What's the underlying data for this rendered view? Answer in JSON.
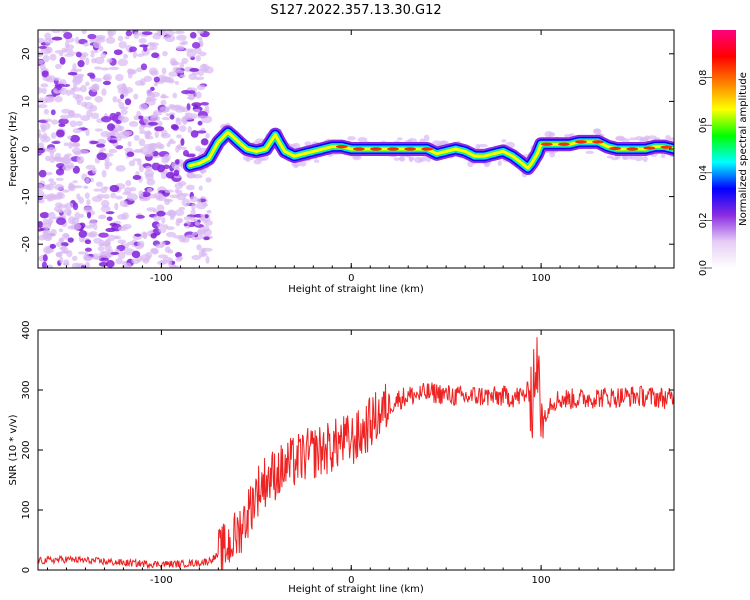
{
  "title": "S127.2022.357.13.30.G12",
  "chart_data": [
    {
      "type": "heatmap",
      "xlabel": "Height of straight line (km)",
      "ylabel": "Frequency (Hz)",
      "xlim": [
        -165,
        170
      ],
      "ylim": [
        -25,
        25
      ],
      "xticks": [
        -100,
        0,
        100
      ],
      "yticks": [
        -20,
        -10,
        0,
        10,
        20
      ],
      "colorbar": {
        "label": "Normalized spectral amplitude",
        "range": [
          0.0,
          1.0
        ],
        "ticks": [
          0.0,
          0.2,
          0.4,
          0.6,
          0.8
        ],
        "colors": [
          "#ffffff",
          "#e6ccf5",
          "#8a2be2",
          "#0000ff",
          "#00ffff",
          "#00ff00",
          "#ffff00",
          "#ff8000",
          "#ff0000",
          "#ff0080"
        ]
      },
      "ridge": {
        "x": [
          -85,
          -80,
          -75,
          -70,
          -65,
          -62,
          -58,
          -55,
          -50,
          -45,
          -40,
          -38,
          -35,
          -30,
          -25,
          -20,
          -15,
          -10,
          -5,
          0,
          10,
          20,
          30,
          35,
          40,
          45,
          50,
          55,
          60,
          65,
          70,
          75,
          80,
          85,
          90,
          93,
          95,
          98,
          100,
          105,
          110,
          115,
          120,
          125,
          130,
          135,
          140,
          145,
          150,
          155,
          160,
          165,
          170
        ],
        "y": [
          -3.5,
          -3.0,
          -2.0,
          1.5,
          3.5,
          2.5,
          1.0,
          0.0,
          -0.5,
          0.0,
          3.0,
          1.5,
          -0.5,
          -1.5,
          -1.0,
          -0.5,
          0.0,
          0.5,
          0.5,
          0.0,
          0.0,
          0.0,
          0.0,
          0.0,
          0.0,
          -1.0,
          -0.5,
          0.0,
          -0.5,
          -1.5,
          -1.5,
          -1.0,
          -0.5,
          -1.5,
          -3.0,
          -4.0,
          -3.0,
          -1.0,
          1.0,
          1.0,
          1.0,
          1.0,
          1.5,
          1.5,
          1.5,
          0.5,
          0.0,
          0.0,
          0.0,
          0.0,
          0.5,
          0.5,
          0.0
        ]
      },
      "noise_region_x": [
        -165,
        -80
      ]
    },
    {
      "type": "line",
      "xlabel": "Height of straight line (km)",
      "ylabel": "SNR (10 * v/v)",
      "xlim": [
        -165,
        170
      ],
      "ylim": [
        0,
        400
      ],
      "xticks": [
        -100,
        0,
        100
      ],
      "yticks": [
        0,
        100,
        200,
        300,
        400
      ],
      "series": [
        {
          "color": "#ee2222",
          "x": [
            -165,
            -150,
            -135,
            -120,
            -105,
            -90,
            -80,
            -75,
            -70,
            -65,
            -60,
            -55,
            -50,
            -45,
            -40,
            -35,
            -30,
            -25,
            -20,
            -15,
            -10,
            -5,
            0,
            5,
            10,
            15,
            20,
            25,
            30,
            35,
            40,
            45,
            50,
            55,
            60,
            65,
            70,
            75,
            80,
            85,
            90,
            95,
            98,
            100,
            105,
            110,
            120,
            130,
            140,
            150,
            160,
            170
          ],
          "y": [
            15,
            18,
            15,
            12,
            10,
            10,
            12,
            15,
            25,
            40,
            60,
            90,
            130,
            150,
            160,
            170,
            180,
            190,
            195,
            200,
            205,
            215,
            215,
            225,
            245,
            260,
            275,
            285,
            290,
            292,
            295,
            295,
            292,
            290,
            288,
            290,
            290,
            288,
            290,
            288,
            290,
            300,
            330,
            250,
            280,
            285,
            285,
            288,
            288,
            290,
            288,
            285
          ]
        }
      ]
    }
  ]
}
